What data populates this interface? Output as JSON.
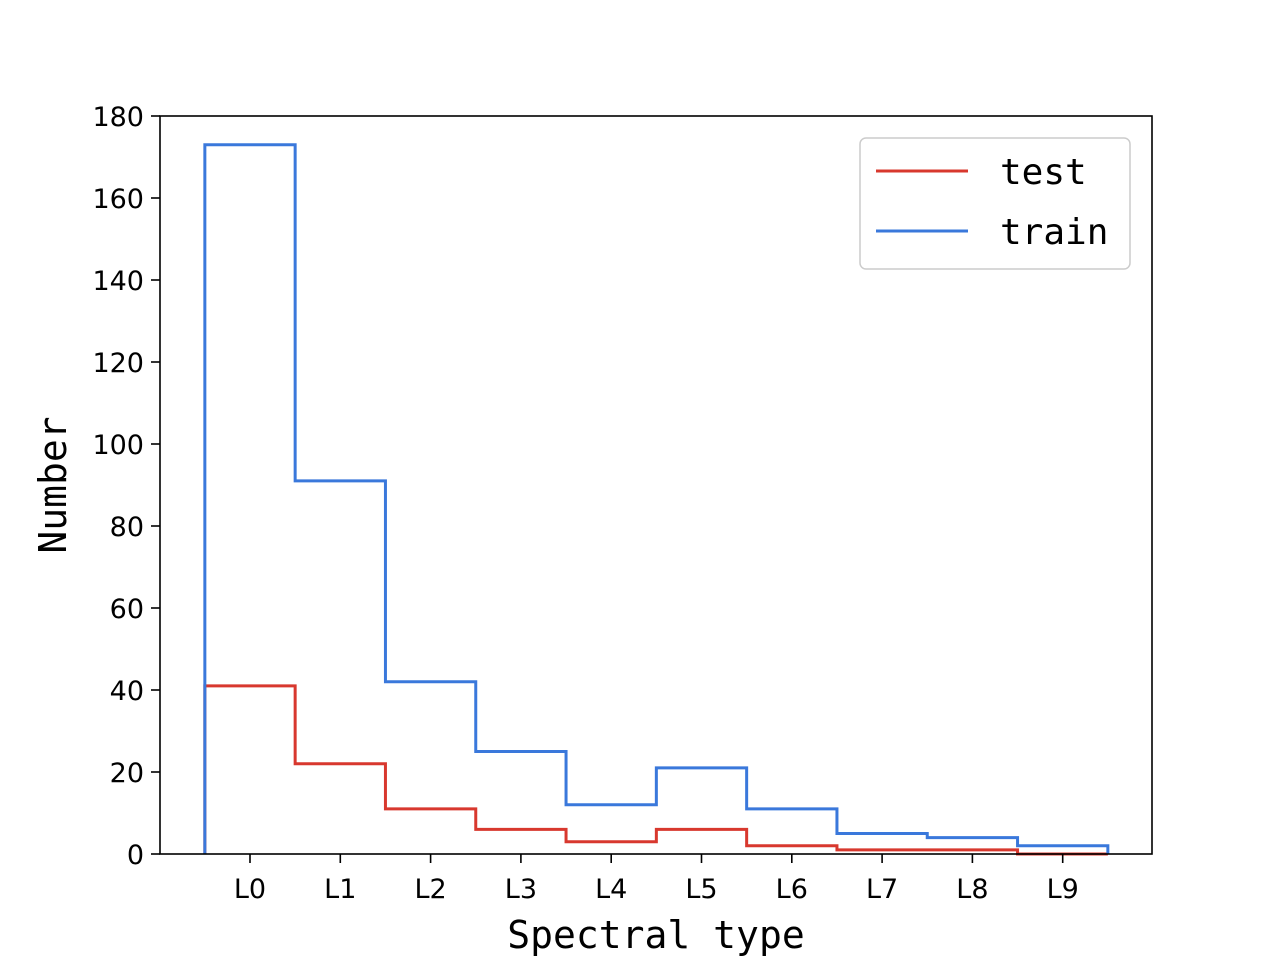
{
  "chart_data": {
    "type": "step-histogram",
    "title": "",
    "xlabel": "Spectral type",
    "ylabel": "Number",
    "categories": [
      "L0",
      "L1",
      "L2",
      "L3",
      "L4",
      "L5",
      "L6",
      "L7",
      "L8",
      "L9"
    ],
    "ylim": [
      0,
      180
    ],
    "yticks": [
      "0",
      "20",
      "40",
      "60",
      "80",
      "100",
      "120",
      "140",
      "160",
      "180"
    ],
    "grid": false,
    "legend_position": "top-right",
    "series": [
      {
        "name": "test",
        "color": "#d8382e",
        "values": [
          41,
          22,
          11,
          6,
          3,
          6,
          2,
          1,
          1,
          0
        ]
      },
      {
        "name": "train",
        "color": "#3a78db",
        "values": [
          173,
          91,
          42,
          25,
          12,
          21,
          11,
          5,
          4,
          2
        ]
      }
    ]
  }
}
